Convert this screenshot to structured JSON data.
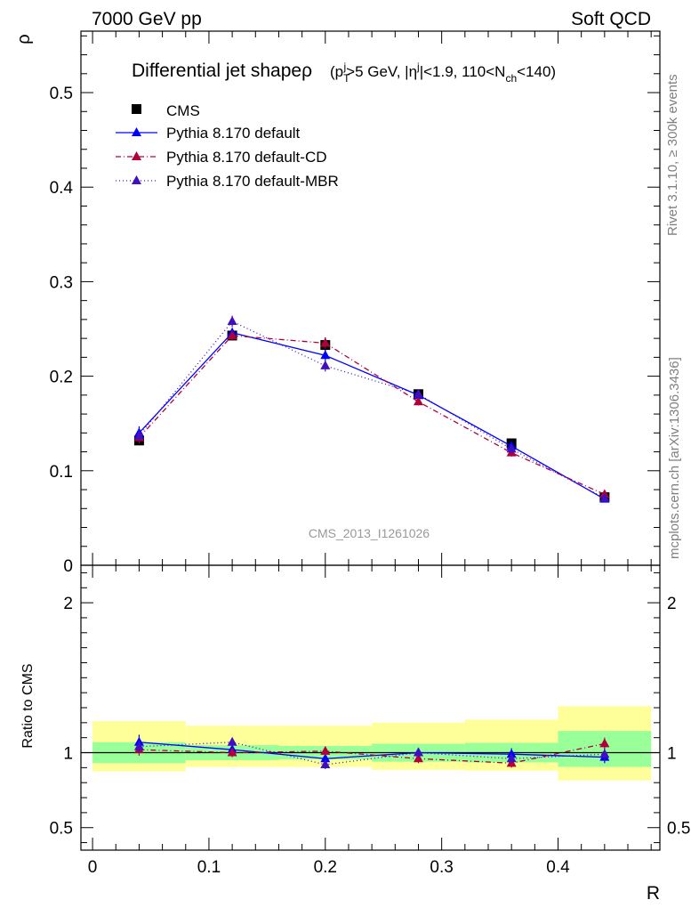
{
  "header": {
    "left": "7000 GeV pp",
    "right": "Soft QCD"
  },
  "side_labels": {
    "rivet": "Rivet 3.1.10, ≥ 300k events",
    "mcplots": "mcplots.cern.ch [arXiv:1306.3436]"
  },
  "chart_data": [
    {
      "type": "line",
      "title_main": "Differential jet shape",
      "title_sym": "ρ",
      "title_cond_parts": [
        "(p",
        "T",
        "j",
        ">5 GeV, |η",
        "j",
        "|<1.9, 110<N",
        "ch",
        "<140)"
      ],
      "ylabel": "ρ",
      "xlabel": "R",
      "watermark": "CMS_2013_I1261026",
      "xlim": [
        -0.01,
        0.4875
      ],
      "ylim": [
        0,
        0.565
      ],
      "yticks": [
        0,
        0.1,
        0.2,
        0.3,
        0.4,
        0.5
      ],
      "ytick_labels": [
        "0",
        "0.1",
        "0.2",
        "0.3",
        "0.4",
        "0.5"
      ],
      "x": [
        0.04,
        0.12,
        0.2,
        0.28,
        0.36,
        0.44
      ],
      "x_bins": [
        [
          0.0,
          0.08
        ],
        [
          0.08,
          0.16
        ],
        [
          0.16,
          0.24
        ],
        [
          0.24,
          0.32
        ],
        [
          0.32,
          0.4
        ],
        [
          0.4,
          0.48
        ]
      ],
      "legend_position": "top-left",
      "series": [
        {
          "name": "CMS",
          "values": [
            0.132,
            0.243,
            0.233,
            0.181,
            0.129,
            0.072
          ],
          "errors": [
            0.004,
            0.005,
            0.008,
            0.004,
            0.004,
            0.003
          ],
          "color": "#000000",
          "marker": "square"
        },
        {
          "name": "Pythia 8.170 default",
          "values": [
            0.14,
            0.246,
            0.222,
            0.18,
            0.126,
            0.07
          ],
          "errors": [
            0.007,
            0.005,
            0.006,
            0.004,
            0.004,
            0.003
          ],
          "color": "#0000ff",
          "marker": "triangle",
          "dash": ""
        },
        {
          "name": "Pythia 8.170 default-CD",
          "values": [
            0.135,
            0.243,
            0.235,
            0.173,
            0.119,
            0.075
          ],
          "errors": [
            0.006,
            0.005,
            0.006,
            0.004,
            0.004,
            0.003
          ],
          "color": "#b0003a",
          "marker": "triangle",
          "dash": "6,3,1,3"
        },
        {
          "name": "Pythia 8.170 default-MBR",
          "values": [
            0.137,
            0.258,
            0.211,
            0.181,
            0.123,
            0.071
          ],
          "errors": [
            0.006,
            0.006,
            0.006,
            0.004,
            0.004,
            0.003
          ],
          "color": "#4010c0",
          "marker": "triangle",
          "dash": "1,3"
        }
      ]
    },
    {
      "type": "line",
      "ylabel": "Ratio to CMS",
      "xlabel": "R",
      "xlim": [
        -0.01,
        0.4875
      ],
      "ylim": [
        0.35,
        2.25
      ],
      "yticks": [
        0.5,
        1,
        2
      ],
      "ytick_labels": [
        "0.5",
        "1",
        "2"
      ],
      "xticks": [
        0,
        0.1,
        0.2,
        0.3,
        0.4
      ],
      "xtick_labels": [
        "0",
        "0.1",
        "0.2",
        "0.3",
        "0.4"
      ],
      "x": [
        0.04,
        0.12,
        0.2,
        0.28,
        0.36,
        0.44
      ],
      "x_bins": [
        [
          0.0,
          0.08
        ],
        [
          0.08,
          0.16
        ],
        [
          0.16,
          0.24
        ],
        [
          0.24,
          0.32
        ],
        [
          0.32,
          0.4
        ],
        [
          0.4,
          0.48
        ]
      ],
      "band_inner": [
        [
          0.93,
          1.07
        ],
        [
          0.95,
          1.05
        ],
        [
          0.955,
          1.045
        ],
        [
          0.94,
          1.06
        ],
        [
          0.935,
          1.065
        ],
        [
          0.905,
          1.145
        ]
      ],
      "band_outer": [
        [
          0.875,
          1.21
        ],
        [
          0.905,
          1.18
        ],
        [
          0.905,
          1.18
        ],
        [
          0.885,
          1.2
        ],
        [
          0.88,
          1.22
        ],
        [
          0.815,
          1.31
        ]
      ],
      "band_colors": {
        "inner": "#99ff99",
        "outer": "#ffff99"
      },
      "series": [
        {
          "name": "Pythia 8.170 default",
          "values": [
            1.07,
            1.02,
            0.96,
            1.0,
            0.99,
            0.97
          ],
          "errors": [
            0.05,
            0.03,
            0.04,
            0.03,
            0.04,
            0.04
          ],
          "color": "#0000ff",
          "dash": ""
        },
        {
          "name": "Pythia 8.170 default-CD",
          "values": [
            1.02,
            1.0,
            1.01,
            0.96,
            0.93,
            1.06
          ],
          "errors": [
            0.04,
            0.03,
            0.03,
            0.03,
            0.03,
            0.04
          ],
          "color": "#b0003a",
          "dash": "6,3,1,3"
        },
        {
          "name": "Pythia 8.170 default-MBR",
          "values": [
            1.04,
            1.07,
            0.92,
            1.0,
            0.96,
            0.99
          ],
          "errors": [
            0.04,
            0.03,
            0.03,
            0.03,
            0.03,
            0.04
          ],
          "color": "#4010c0",
          "dash": "1,3"
        }
      ]
    }
  ]
}
